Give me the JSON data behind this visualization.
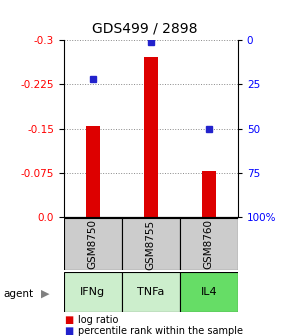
{
  "title": "GDS499 / 2898",
  "samples": [
    "GSM8750",
    "GSM8755",
    "GSM8760"
  ],
  "agents": [
    "IFNg",
    "TNFa",
    "IL4"
  ],
  "agent_colors": [
    "#cceecc",
    "#cceecc",
    "#66dd66"
  ],
  "log_ratios": [
    -0.155,
    -0.271,
    -0.078
  ],
  "percentile_ranks": [
    0.22,
    0.01,
    0.5
  ],
  "ylim": [
    0.0,
    -0.3
  ],
  "yticks": [
    0.0,
    -0.075,
    -0.15,
    -0.225,
    -0.3
  ],
  "ytick_right_labels": [
    "100%",
    "75",
    "50",
    "25",
    "0"
  ],
  "bar_color": "#dd0000",
  "dot_color": "#2222cc",
  "grid_color": "#888888",
  "sample_box_color": "#cccccc",
  "bar_width": 0.25,
  "legend_bar_label": "log ratio",
  "legend_dot_label": "percentile rank within the sample"
}
